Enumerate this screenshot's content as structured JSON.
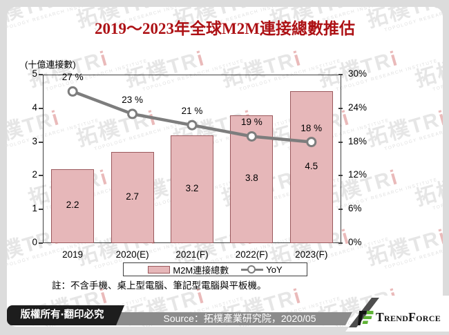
{
  "title": "2019～2023年全球M2M連接總數推估",
  "y_axis_caption": "(十億連接數)",
  "note": "註：不含手機、桌上型電腦、筆記型電腦與平板機。",
  "legend": {
    "bar_label": "M2M連接總數",
    "line_label": "YoY"
  },
  "watermark": {
    "big_cjk": "拓樸TR",
    "big_i": "i",
    "caption": "TOPOLOGY RESEARCH INSTITUTE"
  },
  "footer": {
    "copyright": "版權所有‧翻印必究",
    "source": "Source：拓樸產業研究院，2020/05",
    "brand": "TrendForce"
  },
  "colors": {
    "title_red": "#ad1115",
    "bar_fill": "#e6b7b9",
    "bar_border": "#9a585c",
    "line_gray": "#7d7d7d",
    "axis": "#3f3f3f",
    "footer_gray": "#8b8b8b",
    "footer_black": "#1d1d1d",
    "brand_green": "#5fb336"
  },
  "chart_data": {
    "type": "bar",
    "title": "2019～2023年全球M2M連接總數推估",
    "ylabel": "(十億連接數)",
    "categories": [
      "2019",
      "2020(E)",
      "2021(F)",
      "2022(F)",
      "2023(F)"
    ],
    "series": [
      {
        "name": "M2M連接總數",
        "type": "bar",
        "axis": "left",
        "values": [
          2.2,
          2.7,
          3.2,
          3.8,
          4.5
        ]
      },
      {
        "name": "YoY",
        "type": "line",
        "axis": "right",
        "values": [
          27,
          23,
          21,
          19,
          18
        ],
        "labels": [
          "27 %",
          "23 %",
          "21 %",
          "19 %",
          "18 %"
        ]
      }
    ],
    "left_axis": {
      "min": 0,
      "max": 5,
      "step": 1,
      "ticks": [
        "0",
        "1",
        "2",
        "3",
        "4",
        "5"
      ]
    },
    "right_axis": {
      "min": 0,
      "max": 30,
      "step": 6,
      "ticks": [
        "0%",
        "6%",
        "12%",
        "18%",
        "24%",
        "30%"
      ]
    },
    "legend_position": "bottom",
    "grid": false
  }
}
